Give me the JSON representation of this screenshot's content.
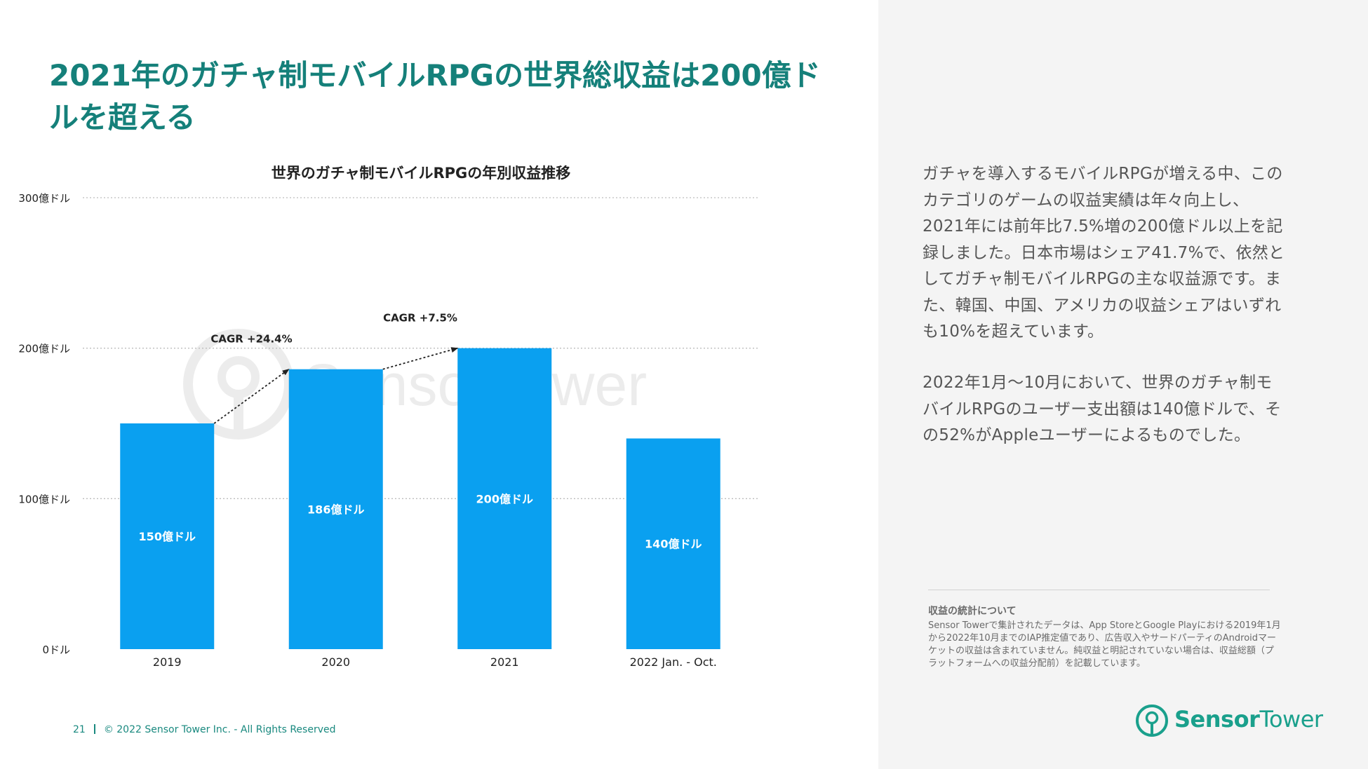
{
  "title": "2021年のガチャ制モバイルRPGの世界総収益は200億ドルを超える",
  "chart_data": {
    "type": "bar",
    "title": "世界のガチャ制モバイルRPGの年別収益推移",
    "categories": [
      "2019",
      "2020",
      "2021",
      "2022 Jan. - Oct."
    ],
    "values": [
      150,
      186,
      200,
      140
    ],
    "value_labels": [
      "150億ドル",
      "186億ドル",
      "200億ドル",
      "140億ドル"
    ],
    "unit": "億ドル",
    "ylim": [
      0,
      300
    ],
    "yticks": [
      0,
      100,
      200,
      300
    ],
    "ytick_labels": [
      "0ドル",
      "100億ドル",
      "200億ドル",
      "300億ドル"
    ],
    "grid": true,
    "bar_color": "#0aa0f0",
    "annotations": [
      {
        "label": "CAGR +24.4%",
        "from_index": 0,
        "to_index": 1
      },
      {
        "label": "CAGR +7.5%",
        "from_index": 1,
        "to_index": 2
      }
    ],
    "watermark": "SensorTower"
  },
  "description": [
    "ガチャを導入するモバイルRPGが増える中、このカテゴリのゲームの収益実績は年々向上し、2021年には前年比7.5%増の200億ドル以上を記録しました。日本市場はシェア41.7%で、依然としてガチャ制モバイルRPGの主な収益源です。また、韓国、中国、アメリカの収益シェアはいずれも10%を超えています。",
    "2022年1月〜10月において、世界のガチャ制モバイルRPGのユーザー支出額は140億ドルで、その52%がAppleユーザーによるものでした。"
  ],
  "note": {
    "title": "収益の統計について",
    "body": "Sensor Towerで集計されたデータは、App StoreとGoogle Playにおける2019年1月から2022年10月までのIAP推定値であり、広告収入やサードパーティのAndroidマーケットの収益は含まれていません。純収益と明記されていない場合は、収益総額（プラットフォームへの収益分配前）を記載しています。"
  },
  "footer": {
    "page_number": "21",
    "copyright": "© 2022 Sensor Tower Inc. - All Rights Reserved"
  },
  "brand": {
    "part1": "Sensor",
    "part2": "Tower"
  },
  "colors": {
    "accent": "#15807a",
    "bar": "#0aa0f0",
    "brand": "#1aa08c"
  }
}
